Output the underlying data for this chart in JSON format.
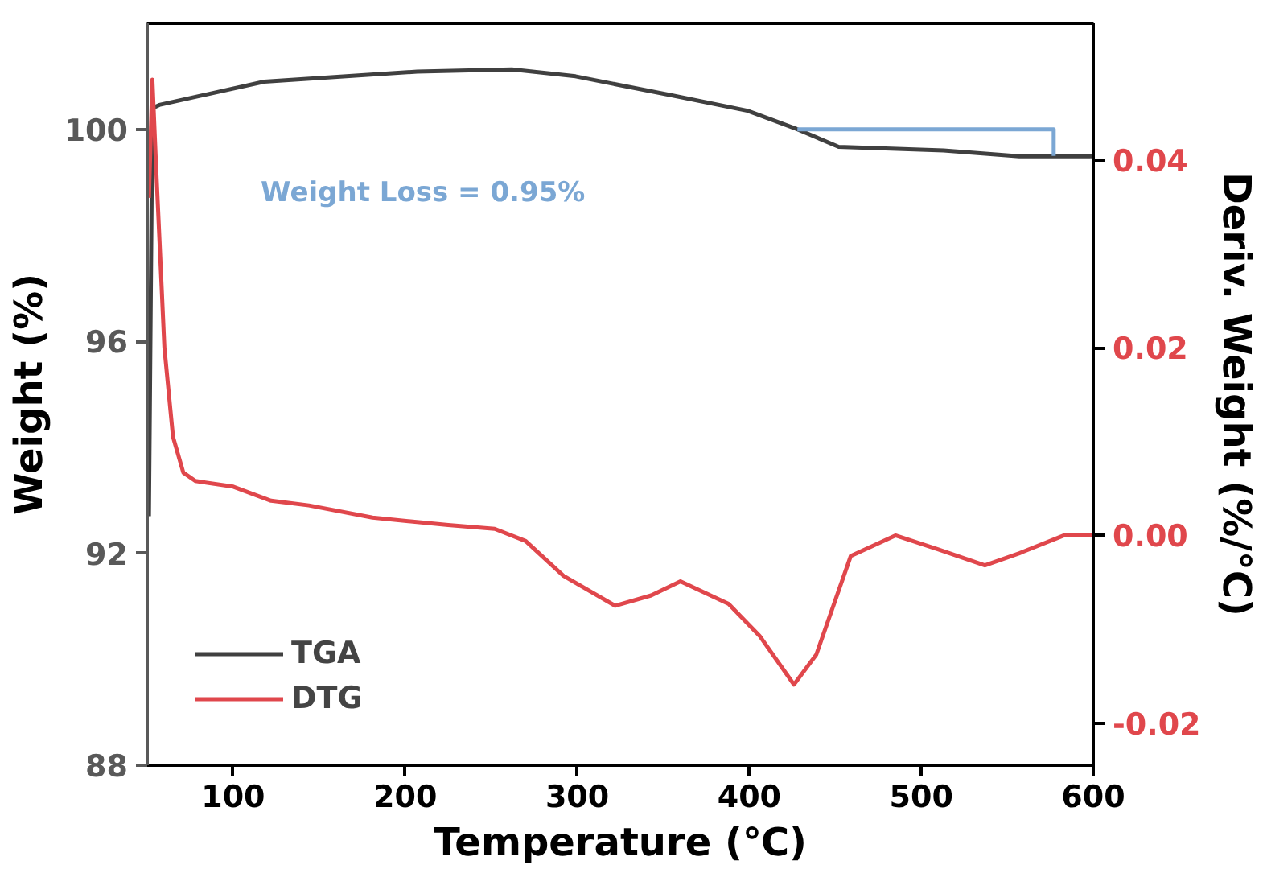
{
  "chart_data": {
    "type": "line",
    "xlabel": "Temperature (℃)",
    "ylabel": "Weight (%)",
    "y2label": "Deriv. Weight (%/°C)",
    "xlim": [
      50,
      600
    ],
    "xticks": [
      100,
      200,
      300,
      400,
      500,
      600
    ],
    "ylim": [
      88,
      102
    ],
    "yticks": [
      88,
      92,
      96,
      100
    ],
    "y2lim": [
      -0.0245,
      0.0546
    ],
    "y2ticks": [
      {
        "value": -0.02,
        "label": "-0.02"
      },
      {
        "value": 0,
        "label": "0.00"
      },
      {
        "value": 0.02,
        "label": "0.02"
      },
      {
        "value": 0.04,
        "label": "0.04"
      }
    ],
    "series": [
      {
        "name": "TGA",
        "color": "#404040",
        "x": [
          51,
          53,
          57,
          118,
          207,
          262,
          299,
          355,
          399,
          428,
          452,
          513,
          557,
          600
        ],
        "values": [
          92.7,
          100.4,
          100.46,
          100.9,
          101.09,
          101.13,
          101.0,
          100.64,
          100.35,
          100.0,
          99.67,
          99.6,
          99.49,
          99.49
        ]
      },
      {
        "name": "DTG",
        "color": "#e0474c",
        "axis": "y2",
        "x": [
          51,
          53,
          55,
          60,
          65,
          71,
          78,
          100,
          122,
          144,
          181,
          225,
          252,
          270,
          292,
          322,
          343,
          360,
          388,
          406,
          426,
          439,
          459,
          485,
          510,
          537,
          557,
          583,
          600
        ],
        "values": [
          0.036,
          0.0486,
          0.04,
          0.02,
          0.0105,
          0.0067,
          0.0058,
          0.0052,
          0.0037,
          0.0032,
          0.0019,
          0.0011,
          0.0007,
          -0.0006,
          -0.0043,
          -0.0075,
          -0.0064,
          -0.0049,
          -0.0073,
          -0.0107,
          -0.0159,
          -0.0127,
          -0.0022,
          0.0,
          -0.0015,
          -0.0032,
          -0.0019,
          0.0,
          0.0
        ]
      },
      {
        "color": "#7ba7d4",
        "x": [
          428,
          577,
          577
        ],
        "values": [
          100.0,
          100.0,
          99.5
        ]
      }
    ],
    "annotations": [
      "Weight Loss = 0.95%"
    ],
    "legend": "bottom left",
    "grid": false,
    "marker": "none",
    "line_style": "solid"
  }
}
